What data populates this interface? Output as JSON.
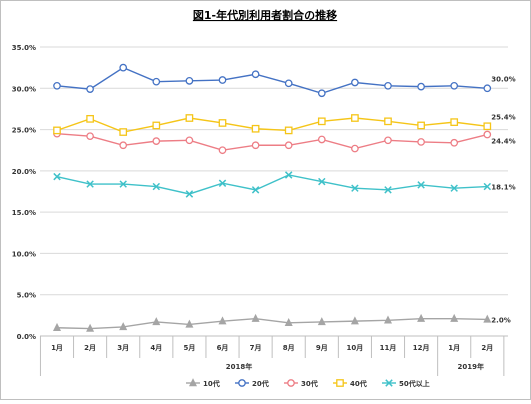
{
  "chart_data": {
    "type": "line",
    "title": "図1-年代別利用者割合の推移",
    "categories": [
      "1月",
      "2月",
      "3月",
      "4月",
      "5月",
      "6月",
      "7月",
      "8月",
      "9月",
      "10月",
      "11月",
      "12月",
      "1月",
      "2月"
    ],
    "year_groups": [
      {
        "label": "2018年",
        "from": 0,
        "to": 11
      },
      {
        "label": "2019年",
        "from": 12,
        "to": 13
      }
    ],
    "ylim": [
      0,
      35
    ],
    "yticks": [
      0,
      5,
      10,
      15,
      20,
      25,
      30,
      35
    ],
    "ytick_labels": [
      "0.0%",
      "5.0%",
      "10.0%",
      "15.0%",
      "20.0%",
      "25.0%",
      "30.0%",
      "35.0%"
    ],
    "grid": true,
    "legend_position": "bottom",
    "series": [
      {
        "name": "10代",
        "color": "#a5a5a5",
        "marker": "triangle",
        "values": [
          1.0,
          0.9,
          1.1,
          1.7,
          1.4,
          1.8,
          2.1,
          1.6,
          1.7,
          1.8,
          1.9,
          2.1,
          2.1,
          2.0
        ],
        "end_label": "2.0%"
      },
      {
        "name": "20代",
        "color": "#4472c4",
        "marker": "circle",
        "values": [
          30.3,
          29.9,
          32.5,
          30.8,
          30.9,
          31.0,
          31.7,
          30.6,
          29.4,
          30.7,
          30.3,
          30.2,
          30.3,
          30.0
        ],
        "end_label": "30.0%"
      },
      {
        "name": "30代",
        "color": "#ed7d85",
        "marker": "circle",
        "values": [
          24.5,
          24.2,
          23.1,
          23.6,
          23.7,
          22.5,
          23.1,
          23.1,
          23.8,
          22.7,
          23.7,
          23.5,
          23.4,
          24.4
        ],
        "end_label": "24.4%"
      },
      {
        "name": "40代",
        "color": "#f5c518",
        "marker": "square",
        "values": [
          24.9,
          26.3,
          24.7,
          25.5,
          26.4,
          25.8,
          25.1,
          24.9,
          26.0,
          26.4,
          26.0,
          25.5,
          25.9,
          25.4
        ],
        "end_label": "25.4%"
      },
      {
        "name": "50代以上",
        "color": "#3fc1c9",
        "marker": "x",
        "values": [
          19.3,
          18.4,
          18.4,
          18.1,
          17.2,
          18.5,
          17.7,
          19.5,
          18.7,
          17.9,
          17.7,
          18.3,
          17.9,
          18.1
        ],
        "end_label": "18.1%"
      }
    ]
  }
}
